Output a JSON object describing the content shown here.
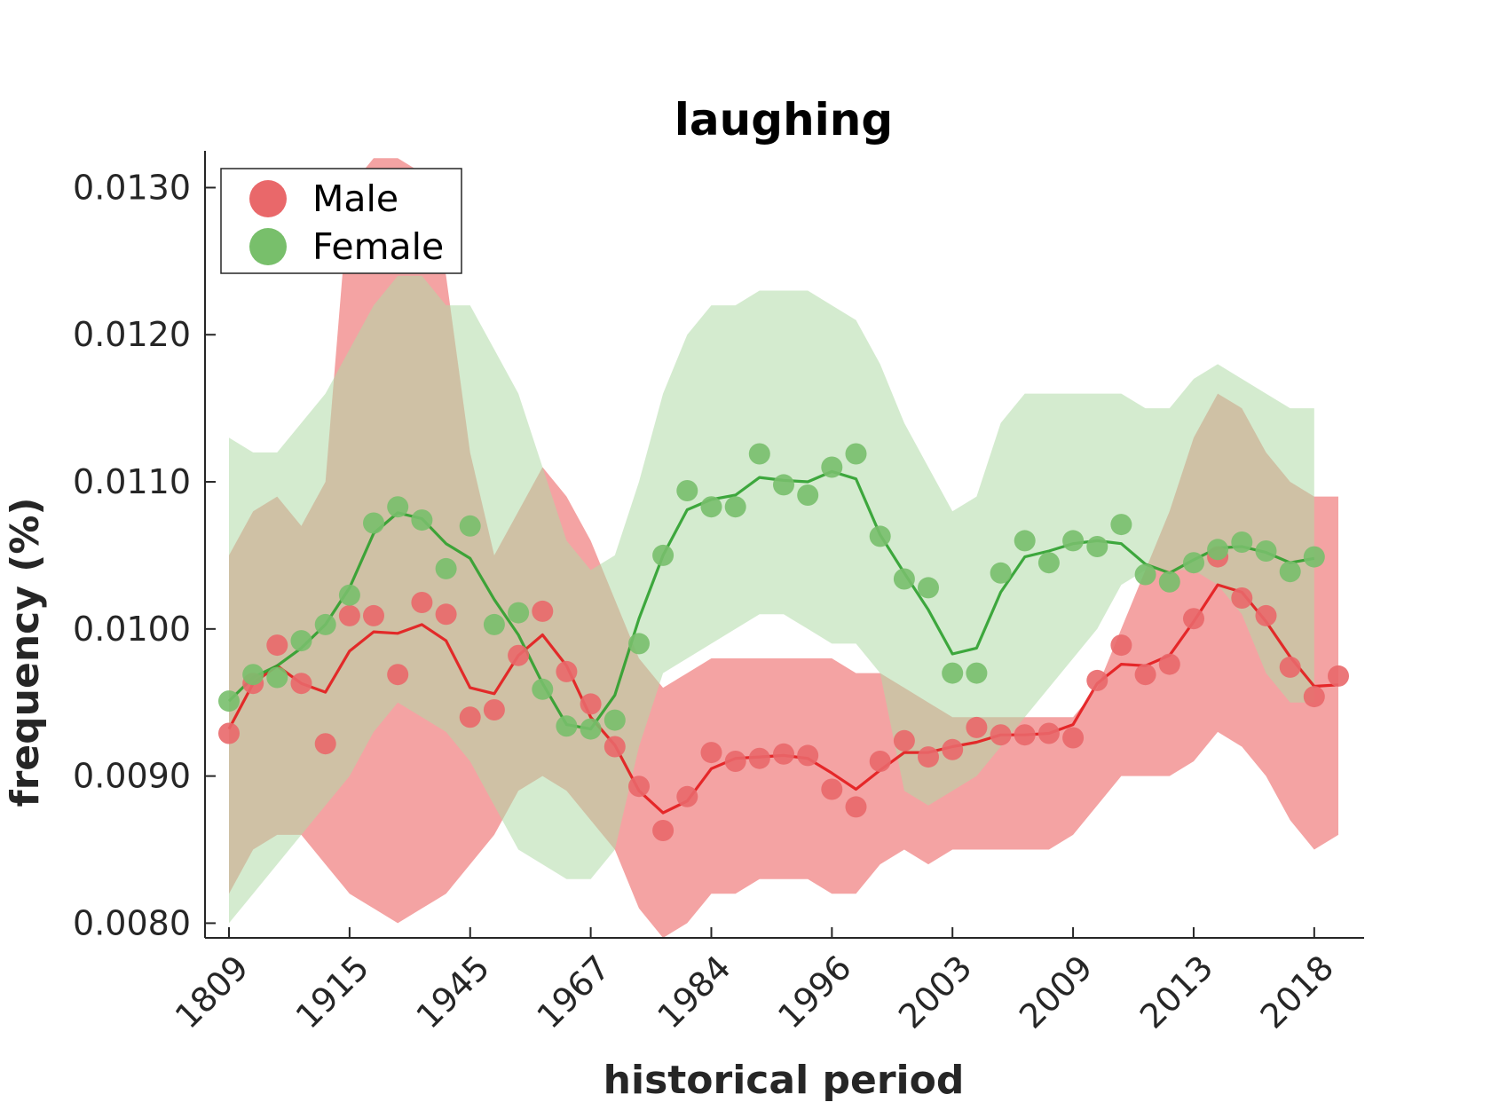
{
  "chart_data": {
    "type": "line",
    "title": "laughing",
    "xlabel": "historical period",
    "ylabel": "frequency (%)",
    "ylim": [
      0.0079,
      0.01325
    ],
    "yticks": [
      0.008,
      0.009,
      0.01,
      0.011,
      0.012,
      0.013
    ],
    "ytick_labels": [
      "0.0080",
      "0.0090",
      "0.0100",
      "0.0110",
      "0.0120",
      "0.0130"
    ],
    "xticks": [
      1,
      6,
      11,
      16,
      21,
      26,
      31,
      36,
      41,
      46
    ],
    "xtick_labels": [
      "1809",
      "1915",
      "1945",
      "1967",
      "1984",
      "1996",
      "2003",
      "2009",
      "2013",
      "2018"
    ],
    "grid": false,
    "legend_position": "top-left",
    "series": [
      {
        "name": "Male",
        "marker_color": "#e9686a",
        "line_color": "#e31a1c",
        "band_color": "#f4a3a3",
        "points": [
          0.00929,
          0.00963,
          0.00989,
          0.00963,
          0.00922,
          0.01009,
          0.01009,
          0.00969,
          0.01018,
          0.0101,
          0.0094,
          0.00945,
          0.00982,
          0.01012,
          0.00971,
          0.00949,
          0.0092,
          0.00893,
          0.00863,
          0.00886,
          0.00916,
          0.0091,
          0.00912,
          0.00915,
          0.00914,
          0.00891,
          0.00879,
          0.0091,
          0.00924,
          0.00913,
          0.00918,
          0.00933,
          0.00928,
          0.00928,
          0.00929,
          0.00926,
          0.00965,
          0.00989,
          0.00969,
          0.00976,
          0.01007,
          0.01049,
          0.01021,
          0.01009,
          0.00974,
          0.00954,
          0.00968
        ],
        "trend": [
          0.00932,
          0.00963,
          0.00975,
          0.00963,
          0.00957,
          0.00985,
          0.00998,
          0.00997,
          0.01003,
          0.00992,
          0.0096,
          0.00956,
          0.00982,
          0.00996,
          0.00975,
          0.0094,
          0.00921,
          0.0089,
          0.00875,
          0.00883,
          0.00905,
          0.00912,
          0.00913,
          0.00914,
          0.00912,
          0.00902,
          0.00891,
          0.00904,
          0.00916,
          0.00916,
          0.0092,
          0.00923,
          0.00928,
          0.00928,
          0.00929,
          0.00935,
          0.00963,
          0.00976,
          0.00975,
          0.00982,
          0.01005,
          0.0103,
          0.01025,
          0.01005,
          0.00981,
          0.00961,
          0.00962
        ],
        "band_upper": [
          0.0105,
          0.0108,
          0.0109,
          0.0107,
          0.011,
          0.013,
          0.0132,
          0.0132,
          0.0131,
          0.0124,
          0.0112,
          0.0105,
          0.0108,
          0.0111,
          0.0109,
          0.0106,
          0.0102,
          0.0098,
          0.0096,
          0.0097,
          0.0098,
          0.0098,
          0.0098,
          0.0098,
          0.0098,
          0.0098,
          0.0097,
          0.0097,
          0.0096,
          0.0095,
          0.0094,
          0.0094,
          0.0094,
          0.0094,
          0.0094,
          0.0094,
          0.0096,
          0.01,
          0.0104,
          0.0108,
          0.0113,
          0.0116,
          0.0115,
          0.0112,
          0.011,
          0.0109,
          0.0109
        ],
        "band_lower": [
          0.0082,
          0.0085,
          0.0086,
          0.0086,
          0.0084,
          0.0082,
          0.0081,
          0.008,
          0.0081,
          0.0082,
          0.0084,
          0.0086,
          0.0089,
          0.009,
          0.0089,
          0.0087,
          0.0085,
          0.0081,
          0.0079,
          0.008,
          0.0082,
          0.0082,
          0.0083,
          0.0083,
          0.0083,
          0.0082,
          0.0082,
          0.0084,
          0.0085,
          0.0084,
          0.0085,
          0.0085,
          0.0085,
          0.0085,
          0.0085,
          0.0086,
          0.0088,
          0.009,
          0.009,
          0.009,
          0.0091,
          0.0093,
          0.0092,
          0.009,
          0.0087,
          0.0085,
          0.0086
        ]
      },
      {
        "name": "Female",
        "marker_color": "#78bf6b",
        "line_color": "#2ca02c",
        "band_color": "#b0dba8",
        "points": [
          0.00951,
          0.00969,
          0.00967,
          0.00992,
          0.01003,
          0.01023,
          0.01072,
          0.01083,
          0.01074,
          0.01041,
          0.0107,
          0.01003,
          0.01011,
          0.00959,
          0.00934,
          0.00932,
          0.00938,
          0.0099,
          0.0105,
          0.01094,
          0.01083,
          0.01083,
          0.01119,
          0.01098,
          0.01091,
          0.0111,
          0.01119,
          0.01063,
          0.01034,
          0.01028,
          0.0097,
          0.0097,
          0.01038,
          0.0106,
          0.01045,
          0.0106,
          0.01056,
          0.01071,
          0.01037,
          0.01032,
          0.01045,
          0.01054,
          0.01059,
          0.01053,
          0.01039,
          0.01049
        ],
        "trend": [
          0.00951,
          0.00967,
          0.00975,
          0.00987,
          0.01003,
          0.01028,
          0.01065,
          0.01079,
          0.01075,
          0.01058,
          0.01048,
          0.0102,
          0.00996,
          0.00963,
          0.00935,
          0.00932,
          0.00955,
          0.01007,
          0.0105,
          0.01081,
          0.01088,
          0.01091,
          0.01103,
          0.01101,
          0.011,
          0.01107,
          0.01102,
          0.01064,
          0.01038,
          0.01013,
          0.00983,
          0.00987,
          0.01025,
          0.01049,
          0.01053,
          0.01058,
          0.0106,
          0.01058,
          0.01044,
          0.01038,
          0.01047,
          0.01055,
          0.01056,
          0.01052,
          0.01045,
          0.01048
        ],
        "band_upper": [
          0.0113,
          0.0112,
          0.0112,
          0.0114,
          0.0116,
          0.0119,
          0.0122,
          0.0124,
          0.0124,
          0.0122,
          0.0122,
          0.0119,
          0.0116,
          0.0111,
          0.0106,
          0.0104,
          0.0105,
          0.011,
          0.0116,
          0.012,
          0.0122,
          0.0122,
          0.0123,
          0.0123,
          0.0123,
          0.0122,
          0.0121,
          0.0118,
          0.0114,
          0.0111,
          0.0108,
          0.0109,
          0.0114,
          0.0116,
          0.0116,
          0.0116,
          0.0116,
          0.0116,
          0.0115,
          0.0115,
          0.0117,
          0.0118,
          0.0117,
          0.0116,
          0.0115,
          0.0115
        ],
        "band_lower": [
          0.008,
          0.0082,
          0.0084,
          0.0086,
          0.0088,
          0.009,
          0.0093,
          0.0095,
          0.0094,
          0.0093,
          0.0091,
          0.0088,
          0.0085,
          0.0084,
          0.0083,
          0.0083,
          0.0085,
          0.0092,
          0.0097,
          0.0098,
          0.0099,
          0.01,
          0.0101,
          0.0101,
          0.01,
          0.0099,
          0.0099,
          0.0097,
          0.0089,
          0.0088,
          0.0089,
          0.009,
          0.0092,
          0.0094,
          0.0096,
          0.0098,
          0.01,
          0.0103,
          0.0104,
          0.0104,
          0.0104,
          0.0103,
          0.0101,
          0.0097,
          0.0095,
          0.0095
        ]
      }
    ]
  }
}
